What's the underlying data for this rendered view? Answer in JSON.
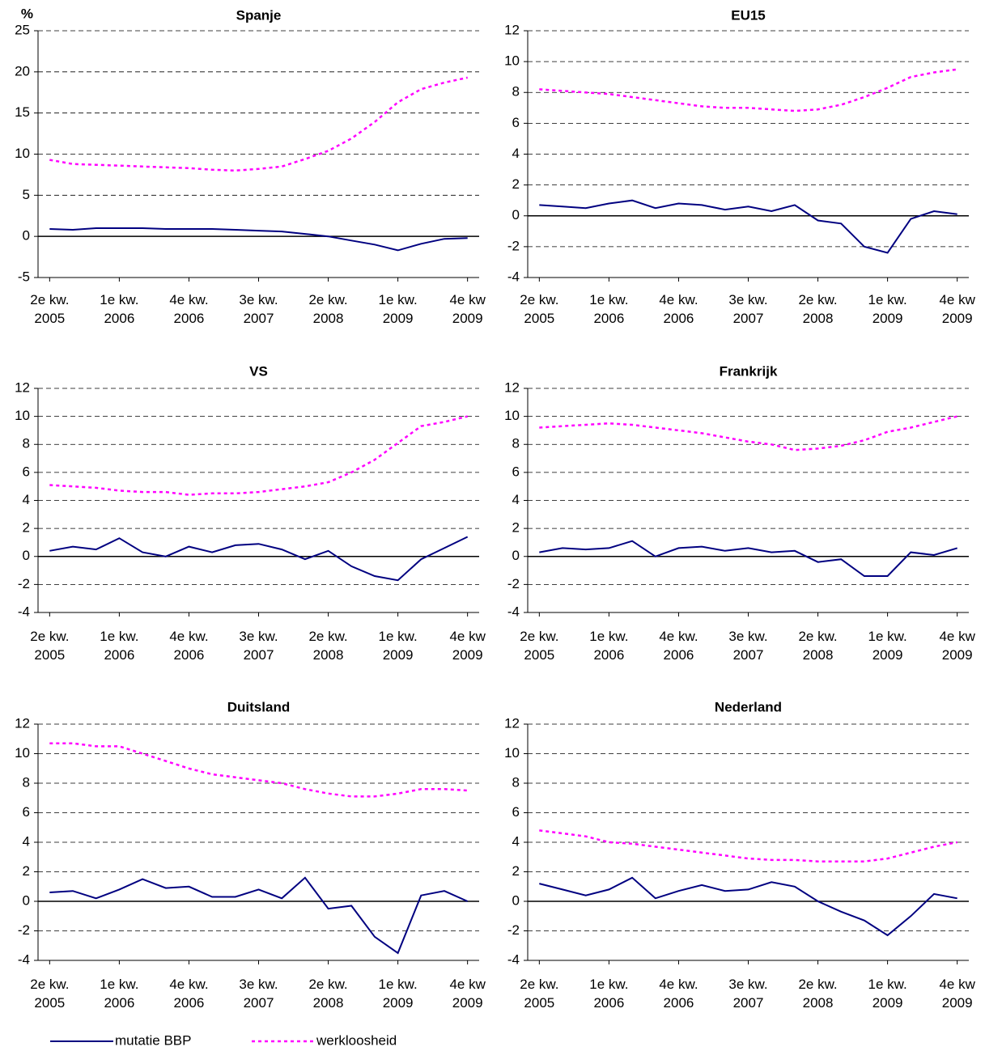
{
  "legend": {
    "position": "bottom-left",
    "entries": [
      {
        "name": "mutatie BBP",
        "color": "#000080",
        "dash": false
      },
      {
        "name": "werkloosheid",
        "color": "#ff00ff",
        "dash": true
      }
    ]
  },
  "chart_data": [
    {
      "type": "line",
      "title": "Spanje",
      "ylabel": "%",
      "categories": [
        "2e kw.\n2005",
        null,
        null,
        "1e kw.\n2006",
        null,
        null,
        "4e kw.\n2006",
        null,
        null,
        "3e kw.\n2007",
        null,
        null,
        "2e kw.\n2008",
        null,
        null,
        "1e kw.\n2009",
        null,
        null,
        "4e kw\n2009"
      ],
      "ylim": [
        -5,
        25
      ],
      "yticks": [
        -5,
        0,
        5,
        10,
        15,
        20,
        25
      ],
      "grid": true,
      "series": [
        {
          "values": [
            0.9,
            0.8,
            1.0,
            1.0,
            1.0,
            0.9,
            0.9,
            0.9,
            0.8,
            0.7,
            0.6,
            0.3,
            0.0,
            -0.5,
            -1.0,
            -1.7,
            -0.9,
            -0.3,
            -0.2
          ]
        },
        {
          "values": [
            9.3,
            8.8,
            8.7,
            8.6,
            8.5,
            8.4,
            8.3,
            8.1,
            8.0,
            8.2,
            8.5,
            9.4,
            10.4,
            11.9,
            13.9,
            16.3,
            17.9,
            18.7,
            19.3
          ]
        }
      ]
    },
    {
      "type": "line",
      "title": "EU15",
      "categories": [
        "2e kw.\n2005",
        null,
        null,
        "1e kw.\n2006",
        null,
        null,
        "4e kw.\n2006",
        null,
        null,
        "3e kw.\n2007",
        null,
        null,
        "2e kw.\n2008",
        null,
        null,
        "1e kw.\n2009",
        null,
        null,
        "4e kw\n2009"
      ],
      "ylim": [
        -4,
        12
      ],
      "yticks": [
        -4,
        -2,
        0,
        2,
        4,
        6,
        8,
        10,
        12
      ],
      "grid": true,
      "series": [
        {
          "values": [
            0.7,
            0.6,
            0.5,
            0.8,
            1.0,
            0.5,
            0.8,
            0.7,
            0.4,
            0.6,
            0.3,
            0.7,
            -0.3,
            -0.5,
            -2.0,
            -2.4,
            -0.2,
            0.3,
            0.1
          ]
        },
        {
          "values": [
            8.2,
            8.1,
            8.0,
            7.9,
            7.7,
            7.5,
            7.3,
            7.1,
            7.0,
            7.0,
            6.9,
            6.8,
            6.9,
            7.2,
            7.7,
            8.3,
            9.0,
            9.3,
            9.5
          ]
        }
      ]
    },
    {
      "type": "line",
      "title": "VS",
      "categories": [
        "2e kw.\n2005",
        null,
        null,
        "1e kw.\n2006",
        null,
        null,
        "4e kw.\n2006",
        null,
        null,
        "3e kw.\n2007",
        null,
        null,
        "2e kw.\n2008",
        null,
        null,
        "1e kw.\n2009",
        null,
        null,
        "4e kw\n2009"
      ],
      "ylim": [
        -4,
        12
      ],
      "yticks": [
        -4,
        -2,
        0,
        2,
        4,
        6,
        8,
        10,
        12
      ],
      "grid": true,
      "series": [
        {
          "values": [
            0.4,
            0.7,
            0.5,
            1.3,
            0.3,
            0.0,
            0.7,
            0.3,
            0.8,
            0.9,
            0.5,
            -0.2,
            0.4,
            -0.7,
            -1.4,
            -1.7,
            -0.2,
            0.6,
            1.4
          ]
        },
        {
          "values": [
            5.1,
            5.0,
            4.9,
            4.7,
            4.6,
            4.6,
            4.4,
            4.5,
            4.5,
            4.6,
            4.8,
            5.0,
            5.3,
            6.0,
            6.9,
            8.1,
            9.3,
            9.6,
            10.0
          ]
        }
      ]
    },
    {
      "type": "line",
      "title": "Frankrijk",
      "categories": [
        "2e kw.\n2005",
        null,
        null,
        "1e kw.\n2006",
        null,
        null,
        "4e kw.\n2006",
        null,
        null,
        "3e kw.\n2007",
        null,
        null,
        "2e kw.\n2008",
        null,
        null,
        "1e kw.\n2009",
        null,
        null,
        "4e kw\n2009"
      ],
      "ylim": [
        -4,
        12
      ],
      "yticks": [
        -4,
        -2,
        0,
        2,
        4,
        6,
        8,
        10,
        12
      ],
      "grid": true,
      "series": [
        {
          "values": [
            0.3,
            0.6,
            0.5,
            0.6,
            1.1,
            0.0,
            0.6,
            0.7,
            0.4,
            0.6,
            0.3,
            0.4,
            -0.4,
            -0.2,
            -1.4,
            -1.4,
            0.3,
            0.1,
            0.6
          ]
        },
        {
          "values": [
            9.2,
            9.3,
            9.4,
            9.5,
            9.4,
            9.2,
            9.0,
            8.8,
            8.5,
            8.2,
            8.0,
            7.6,
            7.7,
            7.9,
            8.3,
            8.9,
            9.2,
            9.6,
            10.0
          ]
        }
      ]
    },
    {
      "type": "line",
      "title": "Duitsland",
      "categories": [
        "2e kw.\n2005",
        null,
        null,
        "1e kw.\n2006",
        null,
        null,
        "4e kw.\n2006",
        null,
        null,
        "3e kw.\n2007",
        null,
        null,
        "2e kw.\n2008",
        null,
        null,
        "1e kw.\n2009",
        null,
        null,
        "4e kw\n2009"
      ],
      "ylim": [
        -4,
        12
      ],
      "yticks": [
        -4,
        -2,
        0,
        2,
        4,
        6,
        8,
        10,
        12
      ],
      "grid": true,
      "series": [
        {
          "values": [
            0.6,
            0.7,
            0.2,
            0.8,
            1.5,
            0.9,
            1.0,
            0.3,
            0.3,
            0.8,
            0.2,
            1.6,
            -0.5,
            -0.3,
            -2.4,
            -3.5,
            0.4,
            0.7,
            0.0
          ]
        },
        {
          "values": [
            10.7,
            10.7,
            10.5,
            10.5,
            10.0,
            9.5,
            9.0,
            8.6,
            8.4,
            8.2,
            8.0,
            7.6,
            7.3,
            7.1,
            7.1,
            7.3,
            7.6,
            7.6,
            7.5
          ]
        }
      ]
    },
    {
      "type": "line",
      "title": "Nederland",
      "categories": [
        "2e kw.\n2005",
        null,
        null,
        "1e kw.\n2006",
        null,
        null,
        "4e kw.\n2006",
        null,
        null,
        "3e kw.\n2007",
        null,
        null,
        "2e kw.\n2008",
        null,
        null,
        "1e kw.\n2009",
        null,
        null,
        "4e kw\n2009"
      ],
      "ylim": [
        -4,
        12
      ],
      "yticks": [
        -4,
        -2,
        0,
        2,
        4,
        6,
        8,
        10,
        12
      ],
      "grid": true,
      "series": [
        {
          "values": [
            1.2,
            0.8,
            0.4,
            0.8,
            1.6,
            0.2,
            0.7,
            1.1,
            0.7,
            0.8,
            1.3,
            1.0,
            0.0,
            -0.7,
            -1.3,
            -2.3,
            -1.0,
            0.5,
            0.2
          ]
        },
        {
          "values": [
            4.8,
            4.6,
            4.4,
            4.0,
            3.9,
            3.7,
            3.5,
            3.3,
            3.1,
            2.9,
            2.8,
            2.8,
            2.7,
            2.7,
            2.7,
            2.9,
            3.3,
            3.7,
            4.0
          ]
        }
      ]
    }
  ]
}
